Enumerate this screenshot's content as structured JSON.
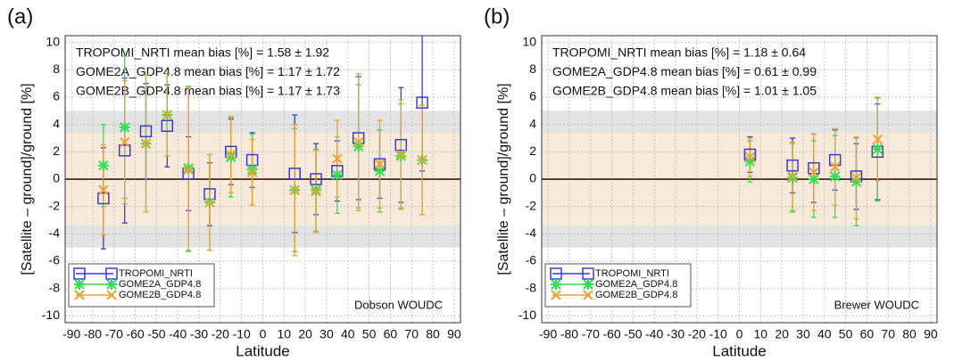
{
  "chart_data": [
    {
      "type": "scatter",
      "panel_label": "(a)",
      "x_label": "Latitude",
      "y_label": "[Satellite – ground]/ground [%]",
      "annotations": [
        "TROPOMI_NRTI mean bias [%] = 1.58 ± 1.92",
        "GOME2A_GDP4.8 mean bias [%] = 1.17 ± 1.72",
        "GOME2B_GDP4.8 mean bias [%] = 1.17 ± 1.73"
      ],
      "station": "Dobson WOUDC",
      "xlim": [
        -93,
        93
      ],
      "ylim": [
        -10.5,
        10.5
      ],
      "xticks": [
        -90,
        -80,
        -70,
        -60,
        -50,
        -40,
        -30,
        -20,
        -10,
        0,
        10,
        20,
        30,
        40,
        50,
        60,
        70,
        80,
        90
      ],
      "yticks": [
        -10,
        -8,
        -6,
        -4,
        -2,
        0,
        2,
        4,
        6,
        8,
        10
      ],
      "grid": true,
      "legend": "lower left",
      "bands": [
        {
          "range": [
            -5,
            5
          ],
          "color": "#e3e3e3"
        },
        {
          "range": [
            -3.4,
            3.4
          ],
          "color": "#f8eadb"
        }
      ],
      "x": [
        -75,
        -65,
        -55,
        -45,
        -35,
        -25,
        -15,
        -5,
        15,
        25,
        35,
        45,
        55,
        65,
        75
      ],
      "series": [
        {
          "name": "TROPOMI_NRTI",
          "color": "#3a3ad6",
          "marker": "square",
          "values": [
            -1.4,
            2.1,
            3.5,
            3.9,
            0.4,
            -1.1,
            2.0,
            1.4,
            0.4,
            0.0,
            0.6,
            3.0,
            1.1,
            2.5,
            5.6
          ],
          "errors": [
            3.7,
            5.3,
            3.5,
            3.0,
            2.7,
            2.3,
            2.4,
            2.0,
            4.3,
            2.6,
            2.2,
            4.5,
            2.5,
            4.2,
            5.0
          ]
        },
        {
          "name": "GOME2A_GDP4.8",
          "color": "#33dd55",
          "marker": "asterisk",
          "values": [
            1.0,
            3.8,
            2.6,
            4.7,
            0.8,
            -1.7,
            1.6,
            0.7,
            -0.8,
            -0.8,
            0.3,
            2.4,
            0.6,
            1.7,
            1.4
          ],
          "errors": [
            3.0,
            5.2,
            5.0,
            3.0,
            6.0,
            3.5,
            2.9,
            2.6,
            4.5,
            3.0,
            2.8,
            4.5,
            3.0,
            3.8,
            4.0
          ]
        },
        {
          "name": "GOME2B_GDP4.8",
          "color": "#f0a030",
          "marker": "x",
          "values": [
            -0.8,
            2.7,
            2.6,
            4.7,
            0.7,
            -1.7,
            1.8,
            0.5,
            -0.8,
            -0.9,
            1.5,
            2.7,
            1.1,
            1.8,
            1.4
          ],
          "errors": [
            3.3,
            4.5,
            5.0,
            3.0,
            6.0,
            3.5,
            2.8,
            2.4,
            4.8,
            3.0,
            2.8,
            5.0,
            3.2,
            4.0,
            4.0
          ]
        }
      ]
    },
    {
      "type": "scatter",
      "panel_label": "(b)",
      "x_label": "Latitude",
      "y_label": "[Satellite – ground]/ground [%]",
      "annotations": [
        "TROPOMI_NRTI mean bias [%] = 1.18 ± 0.64",
        "GOME2A_GDP4.8 mean bias [%] = 0.61 ± 0.99",
        "GOME2B_GDP4.8 mean bias [%] = 1.01 ± 1.05"
      ],
      "station": "Brewer WOUDC",
      "xlim": [
        -93,
        93
      ],
      "ylim": [
        -10.5,
        10.5
      ],
      "xticks": [
        -90,
        -80,
        -70,
        -60,
        -50,
        -40,
        -30,
        -20,
        -10,
        0,
        10,
        20,
        30,
        40,
        50,
        60,
        70,
        80,
        90
      ],
      "yticks": [
        -10,
        -8,
        -6,
        -4,
        -2,
        0,
        2,
        4,
        6,
        8,
        10
      ],
      "grid": true,
      "legend": "lower left",
      "bands": [
        {
          "range": [
            -5,
            5
          ],
          "color": "#e3e3e3"
        },
        {
          "range": [
            -3.4,
            3.4
          ],
          "color": "#f8eadb"
        }
      ],
      "x": [
        5,
        25,
        35,
        45,
        55,
        65
      ],
      "series": [
        {
          "name": "TROPOMI_NRTI",
          "color": "#3a3ad6",
          "marker": "square",
          "values": [
            1.8,
            1.0,
            0.8,
            1.4,
            0.2,
            2.0
          ],
          "errors": [
            1.3,
            2.0,
            2.5,
            2.2,
            2.4,
            3.5
          ]
        },
        {
          "name": "GOME2A_GDP4.8",
          "color": "#33dd55",
          "marker": "asterisk",
          "values": [
            1.3,
            0.1,
            0.0,
            0.2,
            -0.2,
            2.2
          ],
          "errors": [
            1.5,
            2.5,
            2.8,
            3.0,
            3.2,
            3.8
          ]
        },
        {
          "name": "GOME2B_GDP4.8",
          "color": "#f0a030",
          "marker": "x",
          "values": [
            1.6,
            0.2,
            0.5,
            0.9,
            0.1,
            2.9
          ],
          "errors": [
            1.4,
            2.5,
            2.8,
            2.8,
            3.0,
            3.0
          ]
        }
      ]
    }
  ]
}
